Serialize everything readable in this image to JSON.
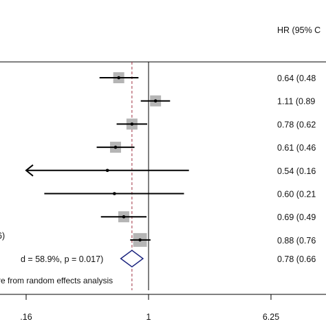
{
  "chart_data": {
    "type": "forest",
    "x_scale": "log",
    "column_header": "HR (95% C",
    "x_ticks": [
      ".16",
      "1",
      "6.25"
    ],
    "x_tick_values": [
      0.16,
      1,
      6.25
    ],
    "null_line": 1,
    "pooled_line": 0.78,
    "studies": [
      {
        "hr": 0.64,
        "lower": 0.48,
        "upper": 0.86,
        "label": "0.64 (0.48",
        "weight": 1.0
      },
      {
        "hr": 1.11,
        "lower": 0.89,
        "upper": 1.38,
        "label": "1.11 (0.89",
        "weight": 1.0
      },
      {
        "hr": 0.78,
        "lower": 0.62,
        "upper": 0.98,
        "label": "0.78 (0.62",
        "weight": 1.0
      },
      {
        "hr": 0.61,
        "lower": 0.46,
        "upper": 0.81,
        "label": "0.61 (0.46",
        "weight": 1.0
      },
      {
        "hr": 0.54,
        "lower": 0.16,
        "upper": 1.83,
        "label": "0.54 (0.16",
        "weight": 0.25,
        "arrow_left": true
      },
      {
        "hr": 0.6,
        "lower": 0.21,
        "upper": 1.7,
        "label": "0.60 (0.21",
        "weight": 0.25
      },
      {
        "hr": 0.69,
        "lower": 0.49,
        "upper": 0.97,
        "label": "0.69 (0.49",
        "weight": 1.0
      },
      {
        "hr": 0.88,
        "lower": 0.76,
        "upper": 1.03,
        "label": "0.88 (0.76",
        "weight": 1.25
      }
    ],
    "pooled": {
      "hr": 0.78,
      "lower": 0.66,
      "upper": 0.92,
      "label": "0.78 (0.66"
    },
    "left_text": {
      "row8": "6)",
      "pooled": "d = 58.9%, p = 0.017)",
      "note": "re from random effects analysis"
    }
  }
}
